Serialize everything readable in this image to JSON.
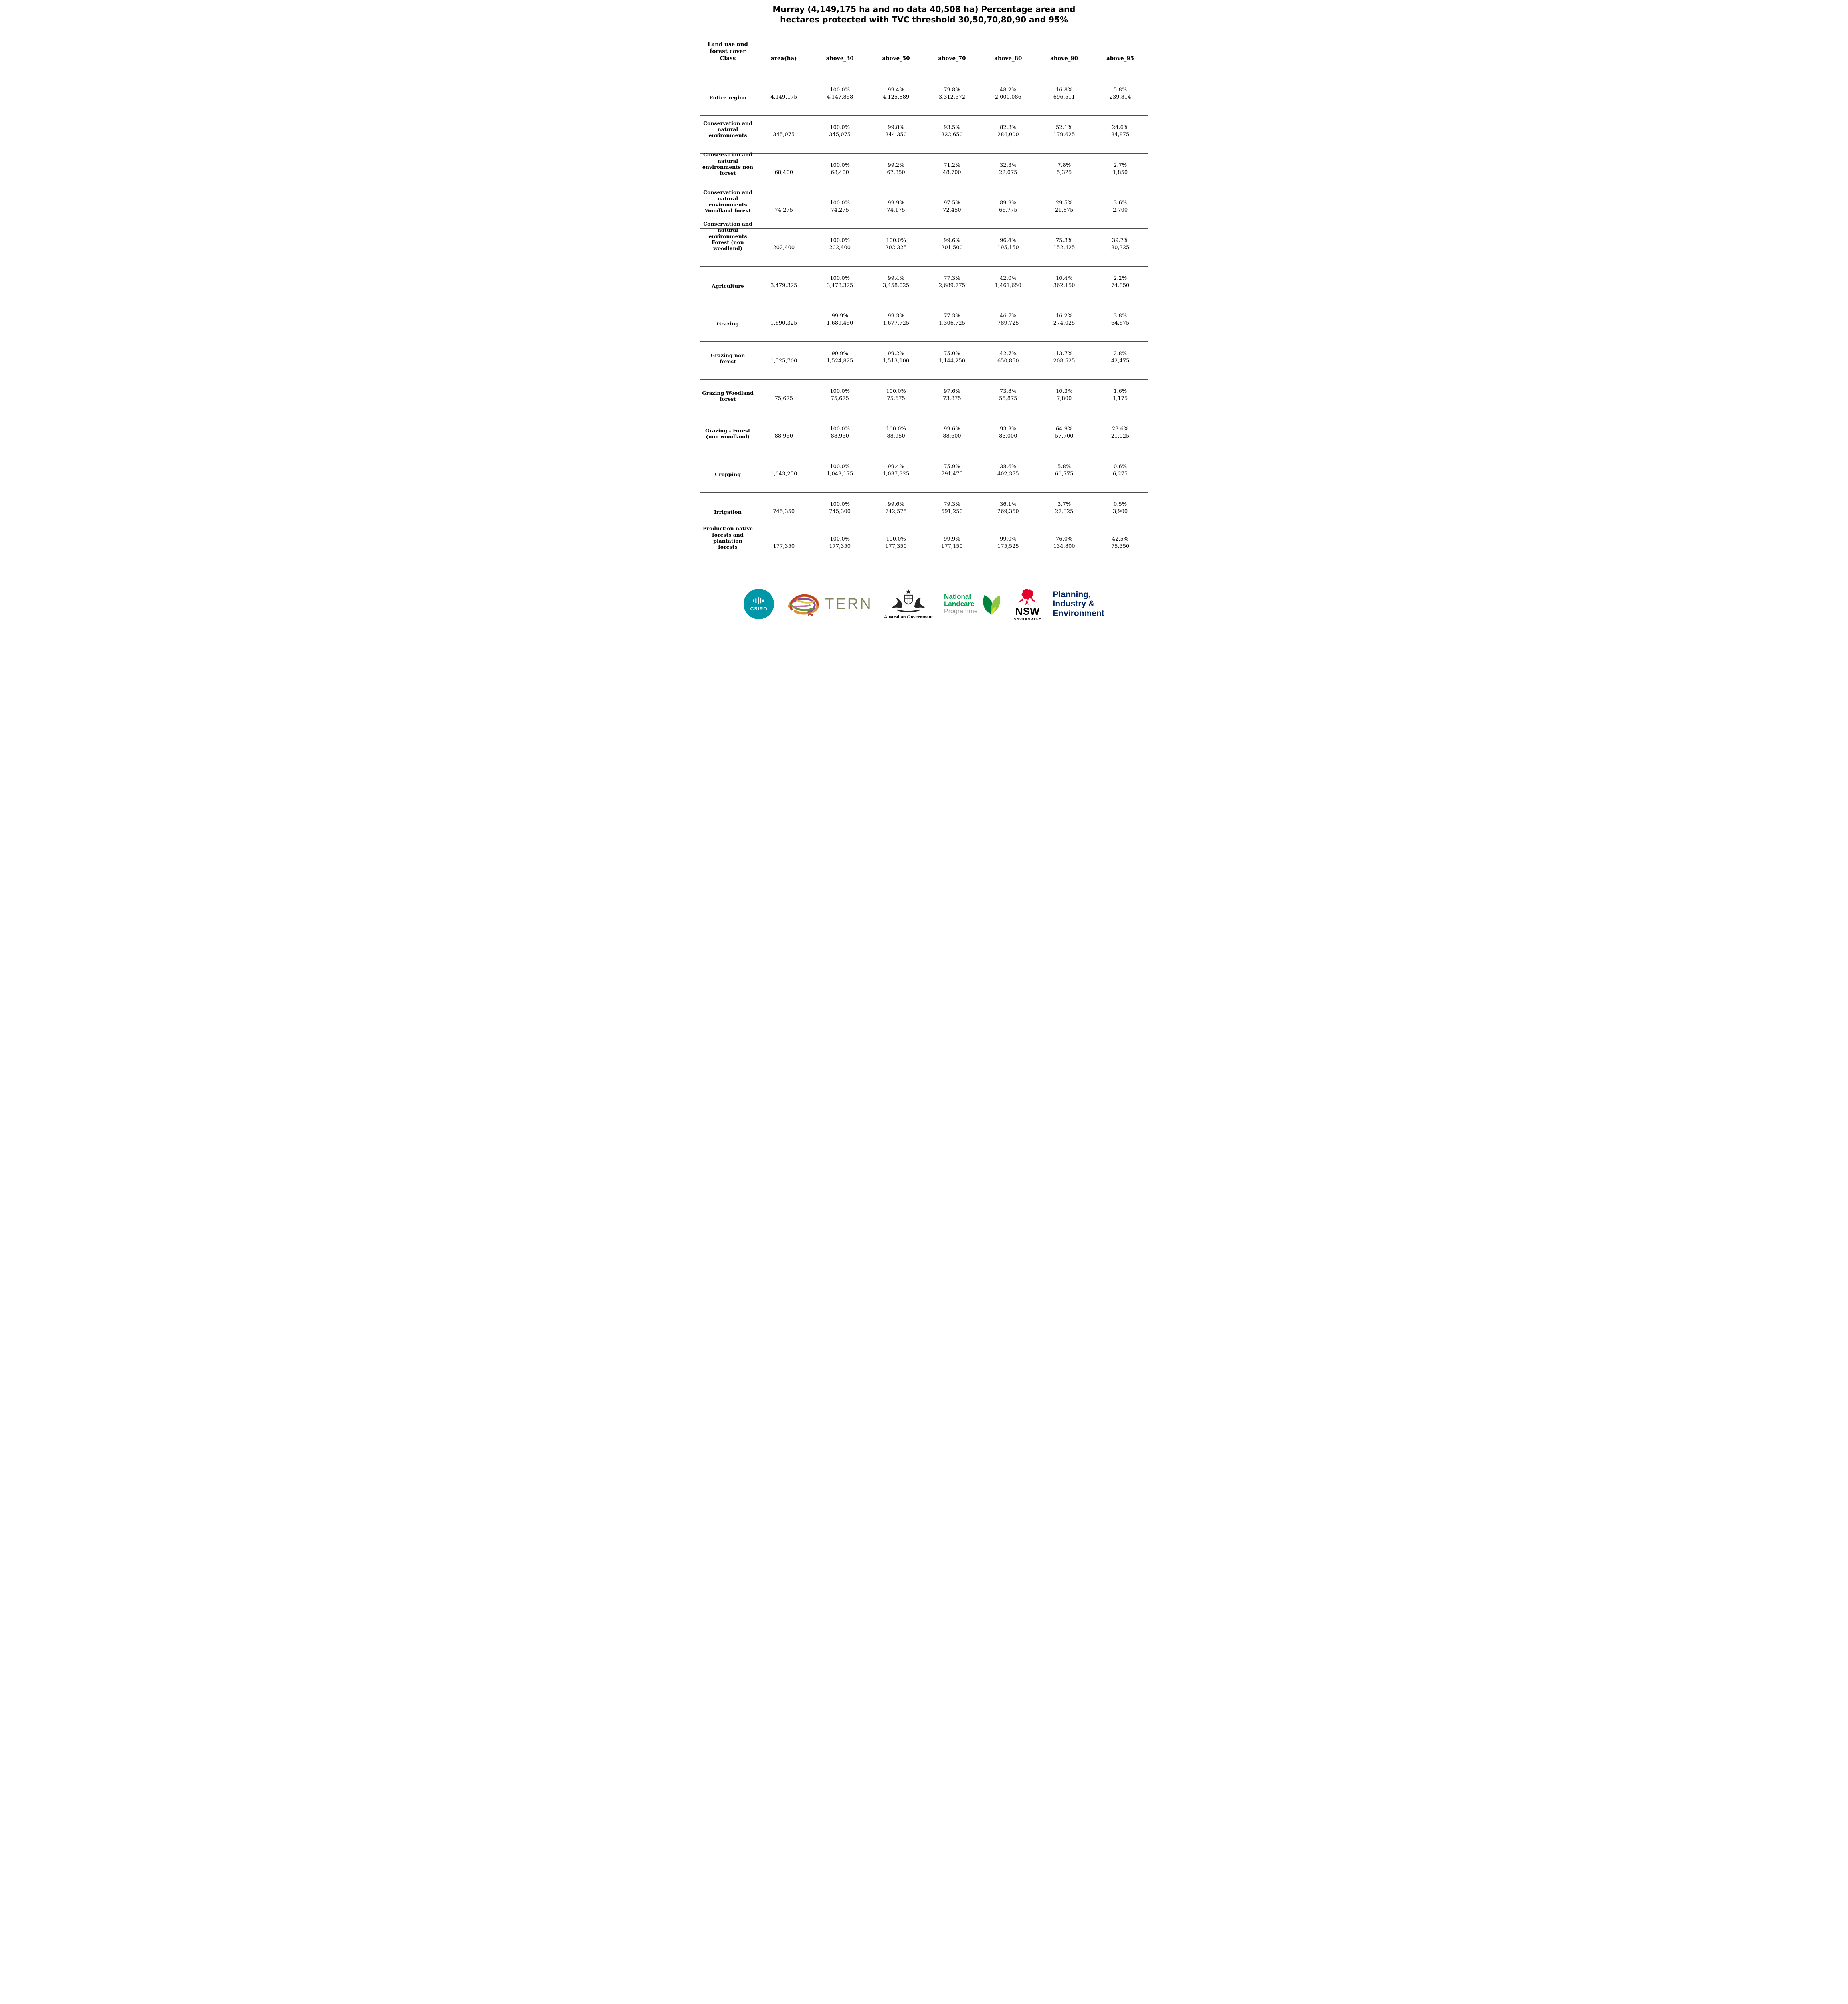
{
  "title": {
    "line1": "Murray (4,149,175 ha and no data 40,508 ha) Percentage area and",
    "line2": "hectares protected with TVC threshold 30,50,70,80,90 and 95%"
  },
  "table": {
    "headers": [
      "Land use and\nforest cover\nClass",
      "area(ha)",
      "above_30",
      "above_50",
      "above_70",
      "above_80",
      "above_90",
      "above_95"
    ],
    "rows": [
      {
        "class": "Entire region",
        "area": "4,149,175",
        "cells": [
          {
            "pct": "100.0%",
            "ha": "4,147,858"
          },
          {
            "pct": "99.4%",
            "ha": "4,125,889"
          },
          {
            "pct": "79.8%",
            "ha": "3,312,572"
          },
          {
            "pct": "48.2%",
            "ha": "2,000,086"
          },
          {
            "pct": "16.8%",
            "ha": "696,511"
          },
          {
            "pct": "5.8%",
            "ha": "239,814"
          }
        ]
      },
      {
        "class": "Conservation and\nnatural\nenvironments",
        "area": "345,075",
        "cells": [
          {
            "pct": "100.0%",
            "ha": "345,075"
          },
          {
            "pct": "99.8%",
            "ha": "344,350"
          },
          {
            "pct": "93.5%",
            "ha": "322,650"
          },
          {
            "pct": "82.3%",
            "ha": "284,000"
          },
          {
            "pct": "52.1%",
            "ha": "179,625"
          },
          {
            "pct": "24.6%",
            "ha": "84,875"
          }
        ]
      },
      {
        "class": "Conservation and\nnatural\nenvironments non\nforest",
        "area": "68,400",
        "cells": [
          {
            "pct": "100.0%",
            "ha": "68,400"
          },
          {
            "pct": "99.2%",
            "ha": "67,850"
          },
          {
            "pct": "71.2%",
            "ha": "48,700"
          },
          {
            "pct": "32.3%",
            "ha": "22,075"
          },
          {
            "pct": "7.8%",
            "ha": "5,325"
          },
          {
            "pct": "2.7%",
            "ha": "1,850"
          }
        ]
      },
      {
        "class": "Conservation and\nnatural\nenvironments\nWoodland forest",
        "area": "74,275",
        "cells": [
          {
            "pct": "100.0%",
            "ha": "74,275"
          },
          {
            "pct": "99.9%",
            "ha": "74,175"
          },
          {
            "pct": "97.5%",
            "ha": "72,450"
          },
          {
            "pct": "89.9%",
            "ha": "66,775"
          },
          {
            "pct": "29.5%",
            "ha": "21,875"
          },
          {
            "pct": "3.6%",
            "ha": "2,700"
          }
        ]
      },
      {
        "class": "Conservation and\nnatural\nenvironments\nForest (non\nwoodland)",
        "area": "202,400",
        "cells": [
          {
            "pct": "100.0%",
            "ha": "202,400"
          },
          {
            "pct": "100.0%",
            "ha": "202,325"
          },
          {
            "pct": "99.6%",
            "ha": "201,500"
          },
          {
            "pct": "96.4%",
            "ha": "195,150"
          },
          {
            "pct": "75.3%",
            "ha": "152,425"
          },
          {
            "pct": "39.7%",
            "ha": "80,325"
          }
        ]
      },
      {
        "class": "Agriculture",
        "area": "3,479,325",
        "cells": [
          {
            "pct": "100.0%",
            "ha": "3,478,325"
          },
          {
            "pct": "99.4%",
            "ha": "3,458,025"
          },
          {
            "pct": "77.3%",
            "ha": "2,689,775"
          },
          {
            "pct": "42.0%",
            "ha": "1,461,650"
          },
          {
            "pct": "10.4%",
            "ha": "362,150"
          },
          {
            "pct": "2.2%",
            "ha": "74,850"
          }
        ]
      },
      {
        "class": "Grazing",
        "area": "1,690,325",
        "cells": [
          {
            "pct": "99.9%",
            "ha": "1,689,450"
          },
          {
            "pct": "99.3%",
            "ha": "1,677,725"
          },
          {
            "pct": "77.3%",
            "ha": "1,306,725"
          },
          {
            "pct": "46.7%",
            "ha": "789,725"
          },
          {
            "pct": "16.2%",
            "ha": "274,025"
          },
          {
            "pct": "3.8%",
            "ha": "64,675"
          }
        ]
      },
      {
        "class": "Grazing non\nforest",
        "area": "1,525,700",
        "cells": [
          {
            "pct": "99.9%",
            "ha": "1,524,825"
          },
          {
            "pct": "99.2%",
            "ha": "1,513,100"
          },
          {
            "pct": "75.0%",
            "ha": "1,144,250"
          },
          {
            "pct": "42.7%",
            "ha": "650,850"
          },
          {
            "pct": "13.7%",
            "ha": "208,525"
          },
          {
            "pct": "2.8%",
            "ha": "42,475"
          }
        ]
      },
      {
        "class": "Grazing Woodland\nforest",
        "area": "75,675",
        "cells": [
          {
            "pct": "100.0%",
            "ha": "75,675"
          },
          {
            "pct": "100.0%",
            "ha": "75,675"
          },
          {
            "pct": "97.6%",
            "ha": "73,875"
          },
          {
            "pct": "73.8%",
            "ha": "55,875"
          },
          {
            "pct": "10.3%",
            "ha": "7,800"
          },
          {
            "pct": "1.6%",
            "ha": "1,175"
          }
        ]
      },
      {
        "class": "Grazing - Forest\n(non woodland)",
        "area": "88,950",
        "cells": [
          {
            "pct": "100.0%",
            "ha": "88,950"
          },
          {
            "pct": "100.0%",
            "ha": "88,950"
          },
          {
            "pct": "99.6%",
            "ha": "88,600"
          },
          {
            "pct": "93.3%",
            "ha": "83,000"
          },
          {
            "pct": "64.9%",
            "ha": "57,700"
          },
          {
            "pct": "23.6%",
            "ha": "21,025"
          }
        ]
      },
      {
        "class": "Cropping",
        "area": "1,043,250",
        "cells": [
          {
            "pct": "100.0%",
            "ha": "1,043,175"
          },
          {
            "pct": "99.4%",
            "ha": "1,037,325"
          },
          {
            "pct": "75.9%",
            "ha": "791,475"
          },
          {
            "pct": "38.6%",
            "ha": "402,375"
          },
          {
            "pct": "5.8%",
            "ha": "60,775"
          },
          {
            "pct": "0.6%",
            "ha": "6,275"
          }
        ]
      },
      {
        "class": "Irrigation",
        "area": "745,350",
        "cells": [
          {
            "pct": "100.0%",
            "ha": "745,300"
          },
          {
            "pct": "99.6%",
            "ha": "742,575"
          },
          {
            "pct": "79.3%",
            "ha": "591,250"
          },
          {
            "pct": "36.1%",
            "ha": "269,350"
          },
          {
            "pct": "3.7%",
            "ha": "27,325"
          },
          {
            "pct": "0.5%",
            "ha": "3,900"
          }
        ]
      },
      {
        "class": "Production native\nforests and\nplantation\nforests",
        "area": "177,350",
        "cells": [
          {
            "pct": "100.0%",
            "ha": "177,350"
          },
          {
            "pct": "100.0%",
            "ha": "177,350"
          },
          {
            "pct": "99.9%",
            "ha": "177,150"
          },
          {
            "pct": "99.0%",
            "ha": "175,525"
          },
          {
            "pct": "76.0%",
            "ha": "134,800"
          },
          {
            "pct": "42.5%",
            "ha": "75,350"
          }
        ]
      }
    ]
  },
  "footer": {
    "csiro": {
      "label": "CSIRO"
    },
    "tern": {
      "label": "TERN"
    },
    "australian_government": {
      "label": "Australian Government"
    },
    "landcare": {
      "line1": "National",
      "line2": "Landcare",
      "line3": "Programme"
    },
    "nsw": {
      "name": "NSW",
      "caption": "GOVERNMENT"
    },
    "dpie": {
      "line1": "Planning,",
      "line2": "Industry &",
      "line3": "Environment"
    }
  },
  "colors": {
    "csiro_teal": "#0097a9",
    "tern_olive": "#84865e",
    "landcare_green": "#009b4a",
    "landcare_gray": "#8f9596",
    "nsw_red": "#e4002b",
    "dpie_navy": "#002664",
    "table_border": "#4d4d4d"
  }
}
